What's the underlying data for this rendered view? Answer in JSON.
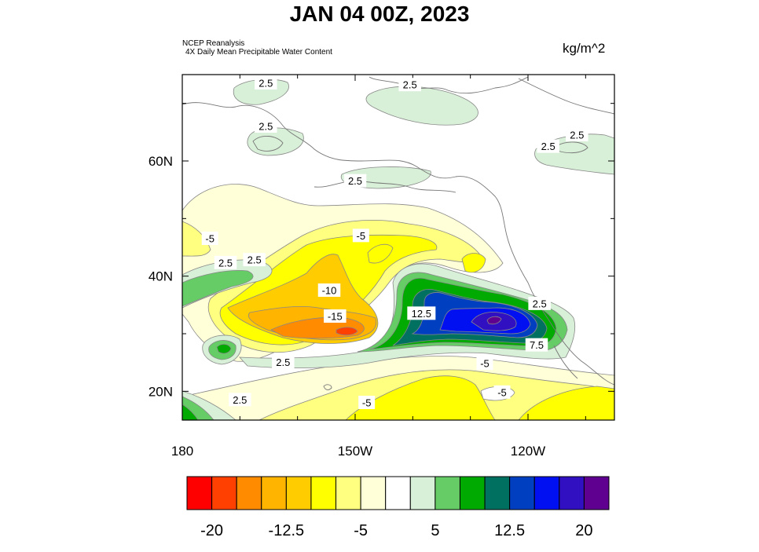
{
  "title": "JAN 04 00Z, 2023",
  "source_line1": "NCEP Reanalysis",
  "source_line2": "4X Daily Mean  Precipitable Water Content",
  "units": "kg/m^2",
  "map": {
    "lon_ticks": [
      {
        "lon": 180,
        "label": "180"
      },
      {
        "lon": 210,
        "label": "150W"
      },
      {
        "lon": 240,
        "label": "120W"
      }
    ],
    "lat_ticks": [
      {
        "lat": 60,
        "label": "60N"
      },
      {
        "lat": 40,
        "label": "40N"
      },
      {
        "lat": 20,
        "label": "20N"
      }
    ],
    "contour_labels": [
      {
        "text": "2.5",
        "lon": 194.5,
        "lat": 73.5
      },
      {
        "text": "2.5",
        "lon": 219.5,
        "lat": 73.2
      },
      {
        "text": "2.5",
        "lon": 194.5,
        "lat": 66.0
      },
      {
        "text": "2.5",
        "lon": 248.5,
        "lat": 64.5
      },
      {
        "text": "2.5",
        "lon": 243.5,
        "lat": 62.5
      },
      {
        "text": "2.5",
        "lon": 210.0,
        "lat": 56.5
      },
      {
        "text": "-5",
        "lon": 184.8,
        "lat": 46.5
      },
      {
        "text": "-5",
        "lon": 211.0,
        "lat": 47.0
      },
      {
        "text": "2.5",
        "lon": 187.5,
        "lat": 42.3
      },
      {
        "text": "2.5",
        "lon": 192.5,
        "lat": 42.8
      },
      {
        "text": "-10",
        "lon": 205.5,
        "lat": 37.5
      },
      {
        "text": "-15",
        "lon": 206.5,
        "lat": 33.0
      },
      {
        "text": "12.5",
        "lon": 221.5,
        "lat": 33.5
      },
      {
        "text": "2.5",
        "lon": 242.0,
        "lat": 35.2
      },
      {
        "text": "7.5",
        "lon": 241.5,
        "lat": 28.0
      },
      {
        "text": "2.5",
        "lon": 197.5,
        "lat": 25.0
      },
      {
        "text": "-5",
        "lon": 232.5,
        "lat": 24.8
      },
      {
        "text": "-5",
        "lon": 235.5,
        "lat": 19.8
      },
      {
        "text": "-5",
        "lon": 212.0,
        "lat": 18.0
      },
      {
        "text": "2.5",
        "lon": 190.0,
        "lat": 18.5
      }
    ]
  },
  "chart_data": {
    "type": "heatmap",
    "title": "JAN 04 00Z, 2023",
    "units": "kg/m^2",
    "xlim": [
      180,
      255
    ],
    "ylim": [
      15,
      75
    ],
    "colorbar": {
      "colors": [
        "#ff0000",
        "#ff4000",
        "#ff8c00",
        "#ffb400",
        "#ffcc00",
        "#ffff00",
        "#ffff80",
        "#ffffd8",
        "#ffffff",
        "#d8f0d8",
        "#66cc66",
        "#00aa00",
        "#007060",
        "#0040c0",
        "#0010f0",
        "#3010c0",
        "#600090"
      ],
      "tick_labels": [
        "-20",
        "-12.5",
        "-5",
        "5",
        "12.5",
        "20"
      ],
      "tick_values": [
        -20,
        -12.5,
        -5,
        5,
        12.5,
        20
      ],
      "levels": [
        -20,
        -17.5,
        -15,
        -12.5,
        -10,
        -7.5,
        -5,
        -2.5,
        2.5,
        5,
        7.5,
        10,
        12.5,
        15,
        17.5,
        20
      ]
    },
    "contour_labels": [
      "2.5",
      "2.5",
      "2.5",
      "2.5",
      "2.5",
      "2.5",
      "-5",
      "-5",
      "2.5",
      "2.5",
      "-10",
      "-15",
      "12.5",
      "2.5",
      "7.5",
      "2.5",
      "-5",
      "-5",
      "-5",
      "2.5"
    ]
  }
}
